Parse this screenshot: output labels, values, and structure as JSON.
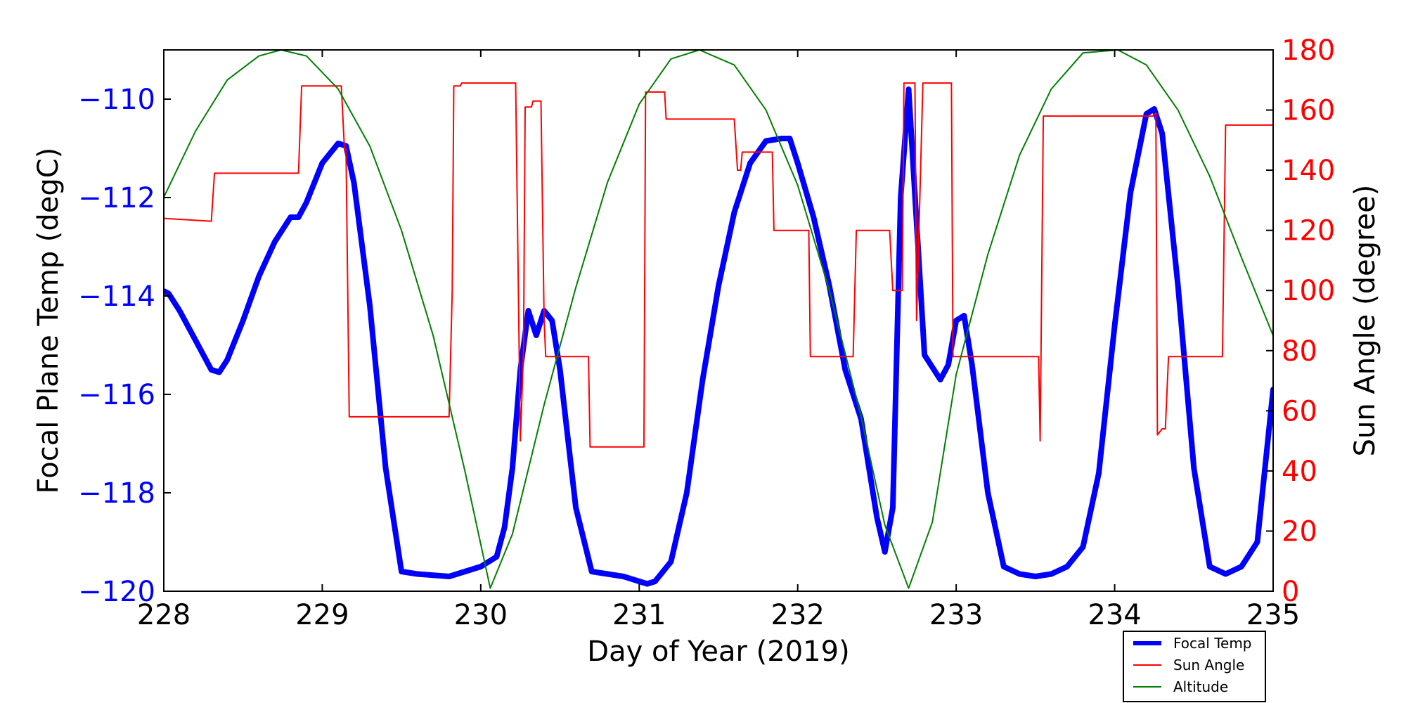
{
  "chart_data": {
    "type": "line",
    "title": "",
    "xlabel": "Day of Year (2019)",
    "ylabel_left": "Focal Plane Temp (degC)",
    "ylabel_right": "Sun Angle (degree)",
    "xlim": [
      228,
      235
    ],
    "ylim_left": [
      -120,
      -109
    ],
    "ylim_right": [
      0,
      180
    ],
    "x_ticks": [
      228,
      229,
      230,
      231,
      232,
      233,
      234,
      235
    ],
    "y_ticks_left": [
      -110,
      -112,
      -114,
      -116,
      -118,
      -120
    ],
    "y_tick_labels_left": [
      "−110",
      "−112",
      "−114",
      "−116",
      "−118",
      "−120"
    ],
    "y_ticks_right": [
      0,
      20,
      40,
      60,
      80,
      100,
      120,
      140,
      160,
      180
    ],
    "legend_position": "bottom-right, below plot",
    "colors": {
      "focal_temp": "#0000ff",
      "sun_angle": "#ff0000",
      "altitude": "#008000",
      "left_axis_text": "#0000ff",
      "right_axis_text": "#ff0000"
    },
    "series": [
      {
        "name": "Focal Temp",
        "axis": "left",
        "style": "thick",
        "x": [
          228.0,
          228.03,
          228.1,
          228.2,
          228.3,
          228.35,
          228.4,
          228.5,
          228.6,
          228.7,
          228.8,
          228.85,
          228.9,
          229.0,
          229.1,
          229.15,
          229.2,
          229.3,
          229.4,
          229.5,
          229.6,
          229.8,
          229.9,
          230.0,
          230.1,
          230.15,
          230.2,
          230.25,
          230.3,
          230.35,
          230.4,
          230.45,
          230.5,
          230.6,
          230.7,
          230.9,
          231.0,
          231.05,
          231.1,
          231.2,
          231.3,
          231.4,
          231.5,
          231.6,
          231.7,
          231.8,
          231.9,
          231.95,
          232.0,
          232.1,
          232.2,
          232.3,
          232.4,
          232.5,
          232.55,
          232.6,
          232.65,
          232.7,
          232.75,
          232.8,
          232.9,
          232.95,
          233.0,
          233.05,
          233.1,
          233.2,
          233.3,
          233.4,
          233.5,
          233.6,
          233.7,
          233.8,
          233.9,
          234.0,
          234.1,
          234.2,
          234.25,
          234.3,
          234.4,
          234.5,
          234.6,
          234.7,
          234.8,
          234.9,
          235.0
        ],
        "values": [
          -113.9,
          -113.95,
          -114.3,
          -114.9,
          -115.5,
          -115.55,
          -115.3,
          -114.5,
          -113.6,
          -112.9,
          -112.4,
          -112.4,
          -112.1,
          -111.3,
          -110.9,
          -110.95,
          -111.7,
          -114.2,
          -117.5,
          -119.6,
          -119.65,
          -119.7,
          -119.6,
          -119.5,
          -119.3,
          -118.7,
          -117.5,
          -115.5,
          -114.3,
          -114.8,
          -114.3,
          -114.5,
          -115.5,
          -118.3,
          -119.6,
          -119.7,
          -119.8,
          -119.85,
          -119.8,
          -119.4,
          -118.0,
          -115.7,
          -113.8,
          -112.3,
          -111.3,
          -110.85,
          -110.8,
          -110.8,
          -111.3,
          -112.4,
          -113.8,
          -115.5,
          -116.5,
          -118.5,
          -119.2,
          -118.3,
          -112.0,
          -109.8,
          -112.5,
          -115.2,
          -115.7,
          -115.4,
          -114.5,
          -114.4,
          -115.4,
          -118.0,
          -119.5,
          -119.65,
          -119.7,
          -119.65,
          -119.5,
          -119.1,
          -117.6,
          -114.6,
          -111.9,
          -110.3,
          -110.2,
          -110.7,
          -113.8,
          -117.5,
          -119.5,
          -119.65,
          -119.5,
          -119.0,
          -115.9
        ]
      },
      {
        "name": "Sun Angle",
        "axis": "right",
        "style": "thin",
        "x": [
          228.0,
          228.3,
          228.32,
          228.85,
          228.87,
          229.12,
          229.14,
          229.15,
          229.17,
          229.8,
          229.82,
          229.83,
          229.85,
          229.87,
          229.88,
          230.22,
          230.25,
          230.27,
          230.28,
          230.32,
          230.33,
          230.38,
          230.4,
          230.41,
          230.42,
          230.68,
          230.69,
          231.03,
          231.04,
          231.16,
          231.17,
          231.6,
          231.62,
          231.64,
          231.65,
          231.84,
          231.85,
          232.07,
          232.08,
          232.35,
          232.37,
          232.58,
          232.6,
          232.66,
          232.67,
          232.68,
          232.69,
          232.74,
          232.75,
          232.79,
          232.8,
          232.97,
          232.98,
          233.47,
          233.52,
          233.53,
          233.55,
          234.24,
          234.26,
          234.27,
          234.3,
          234.32,
          234.34,
          234.35,
          234.37,
          234.68,
          234.7,
          235.0
        ],
        "values": [
          124,
          123,
          139,
          139,
          168,
          168,
          147,
          147,
          58,
          58,
          100,
          168,
          168,
          168,
          169,
          169,
          50,
          80,
          161,
          161,
          163,
          163,
          90,
          78,
          78,
          78,
          48,
          48,
          166,
          166,
          157,
          157,
          140,
          140,
          146,
          146,
          120,
          120,
          78,
          78,
          120,
          120,
          100,
          100,
          169,
          169,
          169,
          169,
          90,
          169,
          169,
          169,
          78,
          78,
          78,
          50,
          158,
          158,
          159,
          52,
          54,
          54,
          78,
          78,
          78,
          78,
          155,
          155
        ]
      },
      {
        "name": "Altitude",
        "axis": "right",
        "style": "thin",
        "period": 2.64,
        "apogee_day": 228.74,
        "x": [
          228.0,
          228.2,
          228.4,
          228.6,
          228.74,
          228.9,
          229.1,
          229.3,
          229.5,
          229.7,
          229.9,
          230.06,
          230.2,
          230.4,
          230.6,
          230.8,
          231.0,
          231.2,
          231.38,
          231.6,
          231.8,
          232.0,
          232.2,
          232.4,
          232.55,
          232.7,
          232.85,
          233.0,
          233.2,
          233.4,
          233.6,
          233.8,
          234.02,
          234.2,
          234.4,
          234.6,
          234.8,
          235.0
        ],
        "values": [
          131,
          153,
          170,
          178,
          180,
          178,
          167,
          148,
          120,
          85,
          40,
          1,
          19,
          62,
          101,
          136,
          162,
          177,
          180,
          175,
          160,
          135,
          100,
          58,
          22,
          1,
          23,
          72,
          112,
          145,
          167,
          179,
          180,
          175,
          160,
          138,
          111,
          85
        ]
      }
    ]
  }
}
